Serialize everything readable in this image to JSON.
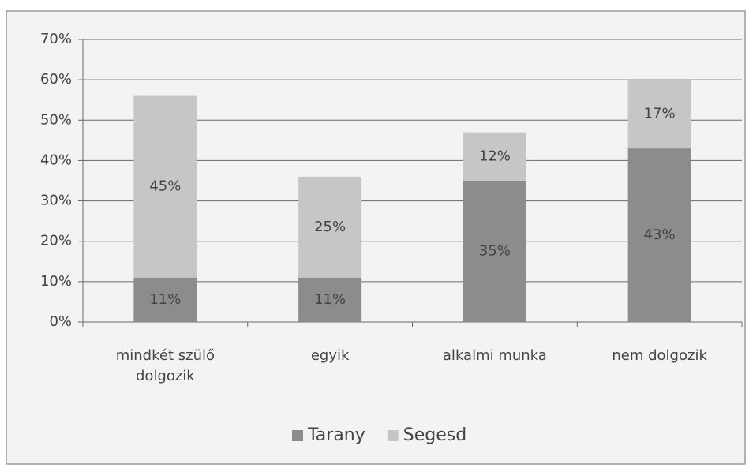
{
  "chart_data": {
    "type": "stacked_bar",
    "categories": [
      "mindkét szülő dolgozik",
      "egyik",
      "alkalmi munka",
      "nem dolgozik"
    ],
    "series": [
      {
        "name": "Tarany",
        "color": "#8c8c8c",
        "values": [
          11,
          11,
          35,
          43
        ],
        "value_labels": [
          "11%",
          "11%",
          "35%",
          "43%"
        ]
      },
      {
        "name": "Segesd",
        "color": "#c6c6c6",
        "values": [
          45,
          25,
          12,
          17
        ],
        "value_labels": [
          "45%",
          "25%",
          "12%",
          "17%"
        ]
      }
    ],
    "ylim": [
      0,
      70
    ],
    "yticks": [
      {
        "value": 0,
        "label": "0%"
      },
      {
        "value": 10,
        "label": "10%"
      },
      {
        "value": 20,
        "label": "20%"
      },
      {
        "value": 30,
        "label": "30%"
      },
      {
        "value": 40,
        "label": "40%"
      },
      {
        "value": 50,
        "label": "50%"
      },
      {
        "value": 60,
        "label": "60%"
      },
      {
        "value": 70,
        "label": "70%"
      }
    ],
    "grid": true,
    "legend": "bottom"
  }
}
